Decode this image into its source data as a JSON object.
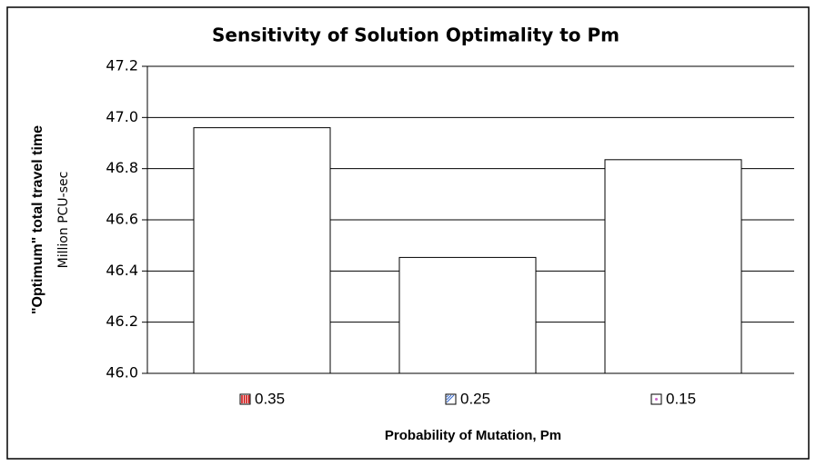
{
  "chart_data": {
    "type": "bar",
    "title": "Sensitivity of Solution Optimality to Pm",
    "x_label": "Probability of Mutation, Pm",
    "y_label": "\"Optimum\" total travel time",
    "y_unit": "Million PCU-sec",
    "categories": [
      "0.35",
      "0.25",
      "0.15"
    ],
    "values": [
      46.96,
      46.453,
      46.835
    ],
    "color": "#ffffff",
    "ylim": [
      46.0,
      47.2
    ],
    "yticks": [
      {
        "value": 46.0,
        "label": "46.0"
      },
      46.2,
      46.4,
      46.6,
      46.8,
      {
        "value": 47.0,
        "label": "47.0"
      },
      47.2
    ],
    "grid": true
  }
}
